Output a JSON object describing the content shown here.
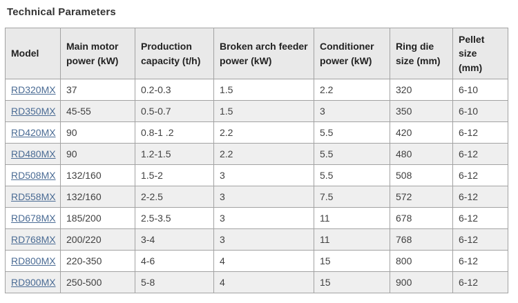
{
  "page": {
    "title": "Technical Parameters"
  },
  "colors": {
    "link": "#4a6b94",
    "header_bg": "#e9e9e9",
    "stripe_bg": "#efefef",
    "border": "#a2a2a2",
    "title_text": "#333333",
    "cell_text": "#404040"
  },
  "table": {
    "columns": [
      "Model",
      "Main motor power (kW)",
      "Production capacity (t/h)",
      "Broken arch feeder power (kW)",
      "Conditioner power (kW)",
      "Ring die size (mm)",
      "Pellet size (mm)"
    ],
    "rows": [
      [
        "RD320MX",
        "37",
        "0.2-0.3",
        "1.5",
        "2.2",
        "320",
        "6-10"
      ],
      [
        "RD350MX",
        "45-55",
        "0.5-0.7",
        "1.5",
        "3",
        "350",
        "6-10"
      ],
      [
        "RD420MX",
        "90",
        "0.8-1 .2",
        "2.2",
        "5.5",
        "420",
        "6-12"
      ],
      [
        "RD480MX",
        "90",
        "1.2-1.5",
        "2.2",
        "5.5",
        "480",
        "6-12"
      ],
      [
        "RD508MX",
        "132/160",
        "1.5-2",
        "3",
        "5.5",
        "508",
        "6-12"
      ],
      [
        "RD558MX",
        "132/160",
        "2-2.5",
        "3",
        "7.5",
        "572",
        "6-12"
      ],
      [
        "RD678MX",
        "185/200",
        "2.5-3.5",
        "3",
        "11",
        "678",
        "6-12"
      ],
      [
        "RD768MX",
        "200/220",
        "3-4",
        "3",
        "11",
        "768",
        "6-12"
      ],
      [
        "RD800MX",
        "220-350",
        "4-6",
        "4",
        "15",
        "800",
        "6-12"
      ],
      [
        "RD900MX",
        "250-500",
        "5-8",
        "4",
        "15",
        "900",
        "6-12"
      ]
    ]
  }
}
